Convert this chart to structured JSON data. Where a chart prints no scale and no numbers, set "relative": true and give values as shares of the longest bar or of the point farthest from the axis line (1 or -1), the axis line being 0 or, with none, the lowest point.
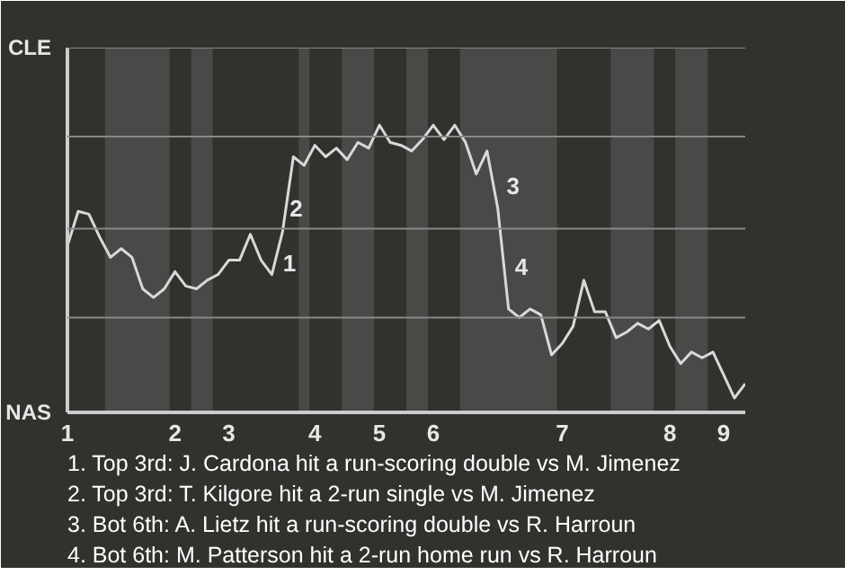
{
  "chart_data": {
    "type": "line",
    "relative": true,
    "categories": [
      "1",
      null,
      null,
      null,
      null,
      null,
      null,
      null,
      null,
      null,
      "2",
      null,
      null,
      null,
      null,
      "3",
      null,
      null,
      null,
      null,
      null,
      null,
      null,
      "4",
      null,
      null,
      null,
      null,
      null,
      "5",
      null,
      null,
      null,
      null,
      "6",
      null,
      null,
      null,
      null,
      null,
      null,
      null,
      null,
      null,
      null,
      null,
      "7",
      null,
      null,
      null,
      null,
      null,
      null,
      null,
      null,
      null,
      "8",
      null,
      null,
      null,
      null,
      "9",
      null,
      null
    ],
    "series": [
      {
        "color": "#d9d9d9",
        "values": [
          0.58,
          0.7,
          0.69,
          0.61,
          0.54,
          0.57,
          0.54,
          0.43,
          0.4,
          0.43,
          0.49,
          0.44,
          0.43,
          0.46,
          0.48,
          0.53,
          0.53,
          0.62,
          0.53,
          0.48,
          0.63,
          0.89,
          0.86,
          0.93,
          0.89,
          0.92,
          0.88,
          0.94,
          0.92,
          1.0,
          0.94,
          0.93,
          0.91,
          0.95,
          1.0,
          0.95,
          1.0,
          0.94,
          0.83,
          0.91,
          0.71,
          0.36,
          0.33,
          0.36,
          0.34,
          0.2,
          0.24,
          0.3,
          0.46,
          0.35,
          0.35,
          0.26,
          0.28,
          0.31,
          0.29,
          0.32,
          0.23,
          0.17,
          0.21,
          0.19,
          0.21,
          0.13,
          0.05,
          0.1
        ]
      }
    ],
    "grid": false,
    "marker": "none",
    "line_style": "solid",
    "ref_lines": [
      {
        "axis": "y",
        "value": 0.33,
        "color": "#8a8886"
      },
      {
        "axis": "y",
        "value": 0.64,
        "color": "#8a8886"
      },
      {
        "axis": "y",
        "value": 0.96,
        "color": "#8a8886"
      },
      {
        "axis": "y",
        "value": 1.27,
        "color": "#8a8886"
      }
    ],
    "annotations": [
      "CLE",
      "NAS",
      "1",
      "2",
      "3",
      "4",
      "1. Top 3rd: J. Cardona hit a run-scoring double vs M. Jimenez",
      "2. Top 3rd: T. Kilgore hit a 2-run single vs M. Jimenez",
      "3. Bot 6th: A. Lietz hit a run-scoring double vs R. Harroun",
      "4. Bot 6th: M. Patterson hit a 2-run home run vs R. Harroun"
    ]
  }
}
